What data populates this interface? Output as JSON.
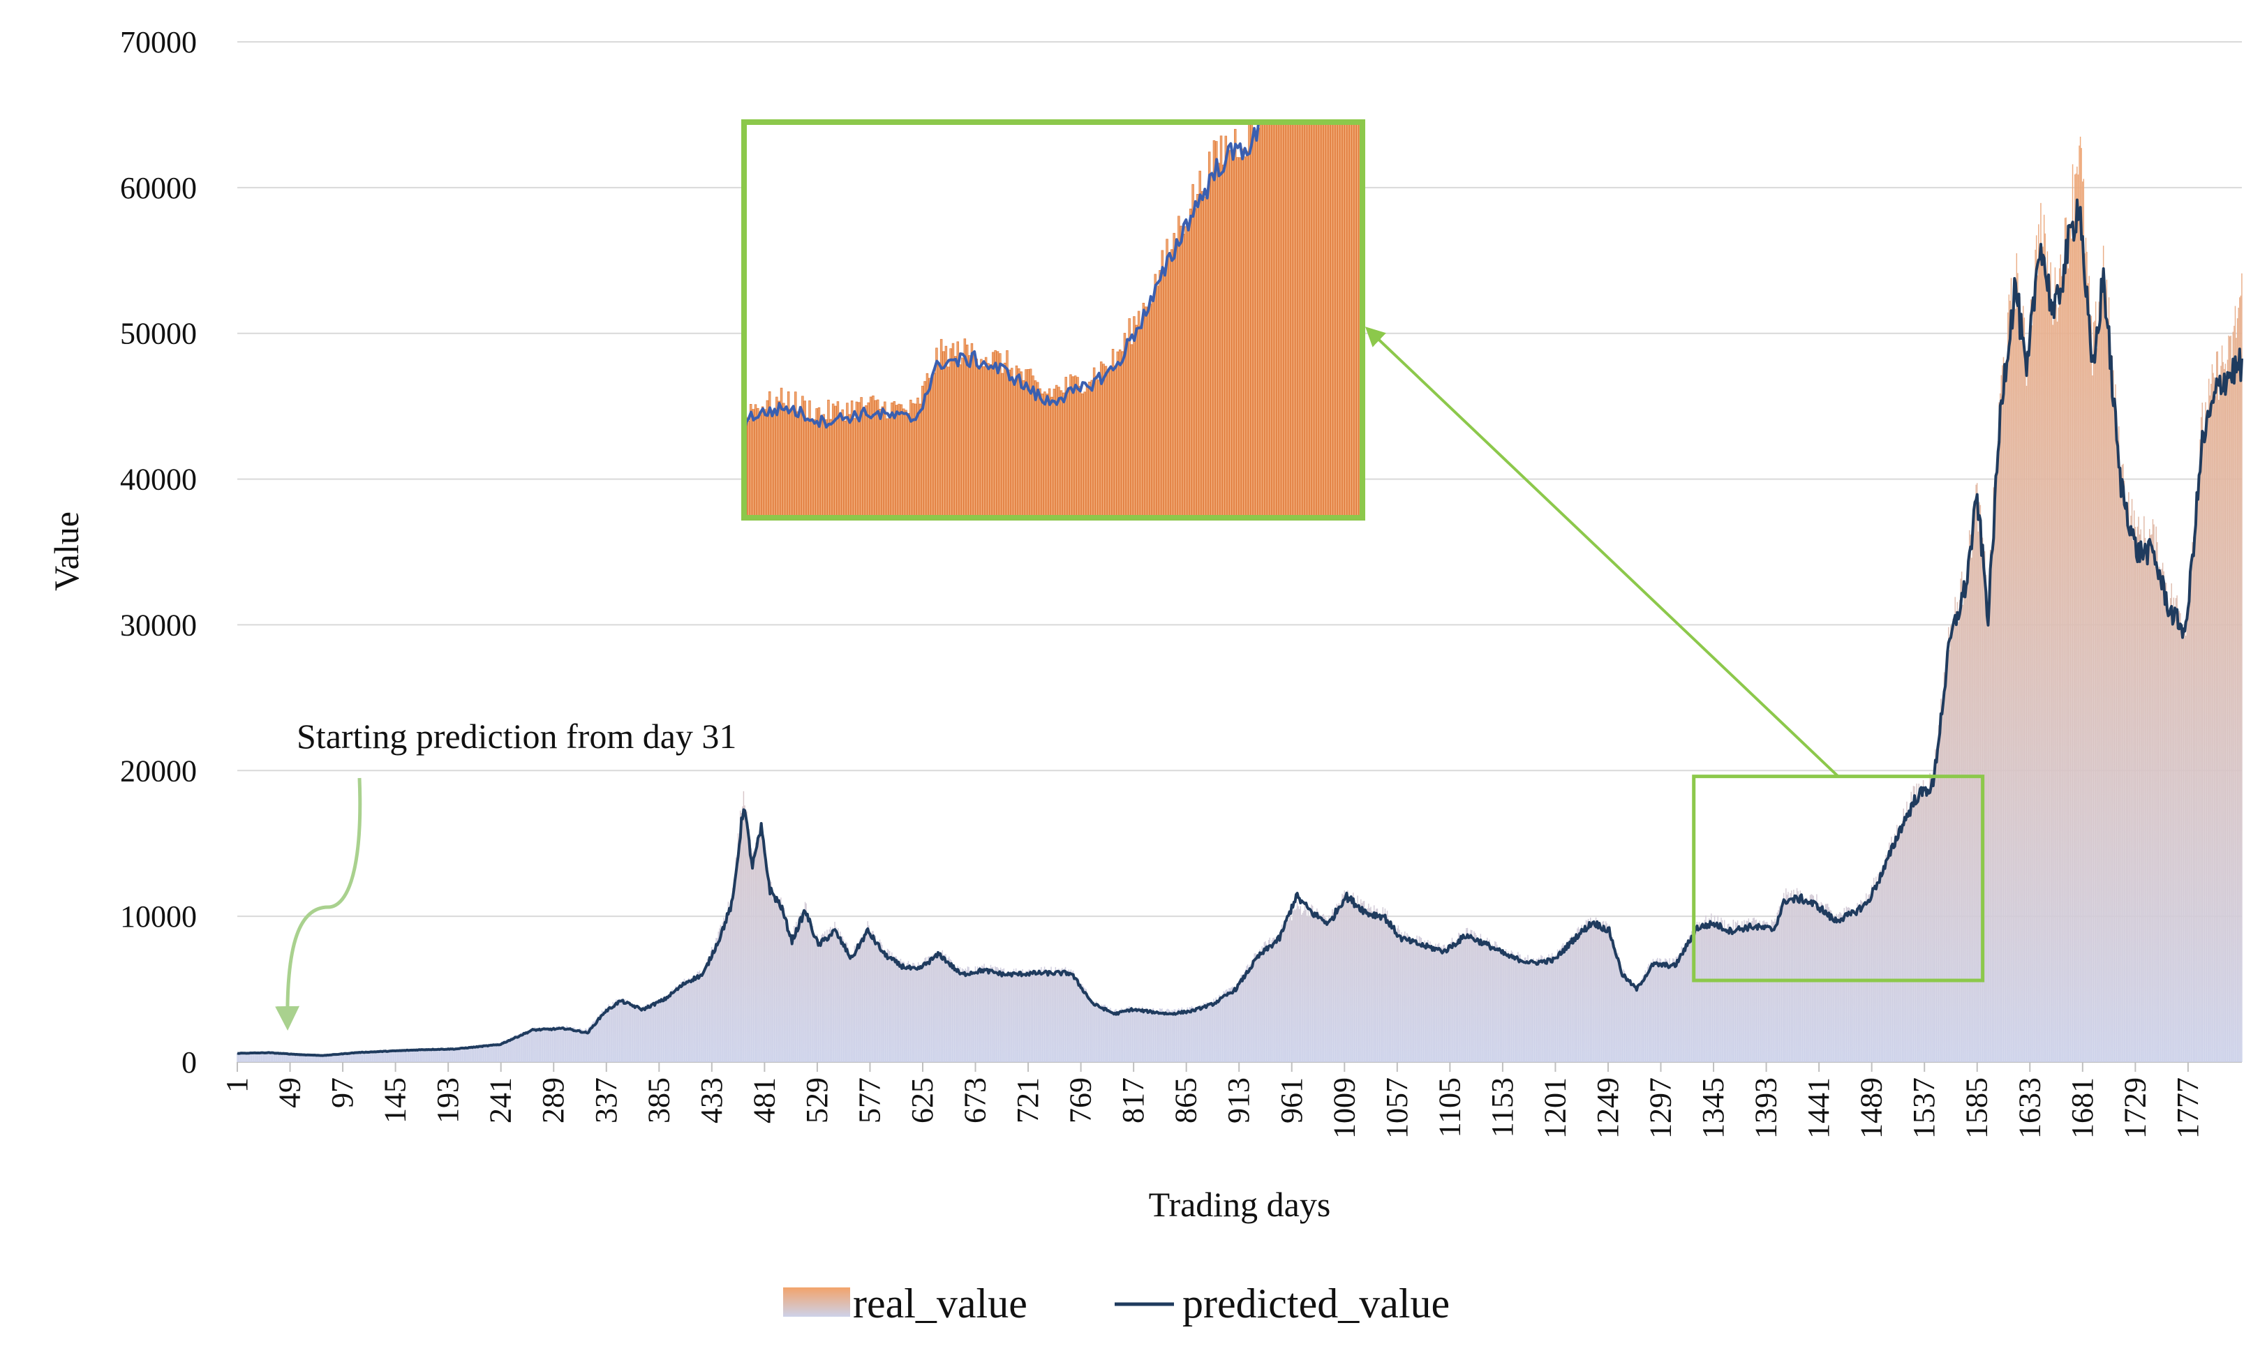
{
  "chart_data": {
    "type": "bar+line",
    "title": "",
    "xlabel": "Trading days",
    "ylabel": "Value",
    "ylim": [
      0,
      70000
    ],
    "xlim": [
      1,
      1826
    ],
    "yticks": [
      0,
      10000,
      20000,
      30000,
      40000,
      50000,
      60000,
      70000
    ],
    "ytick_labels": [
      "0",
      "10000",
      "20000",
      "30000",
      "40000",
      "50000",
      "60000",
      "70000"
    ],
    "xticks": [
      1,
      49,
      97,
      145,
      193,
      241,
      289,
      337,
      385,
      433,
      481,
      529,
      577,
      625,
      673,
      721,
      769,
      817,
      865,
      913,
      961,
      1009,
      1057,
      1105,
      1153,
      1201,
      1249,
      1297,
      1345,
      1393,
      1441,
      1489,
      1537,
      1585,
      1633,
      1681,
      1729,
      1777
    ],
    "xtick_labels": [
      "1",
      "49",
      "97",
      "145",
      "193",
      "241",
      "289",
      "337",
      "385",
      "433",
      "481",
      "529",
      "577",
      "625",
      "673",
      "721",
      "769",
      "817",
      "865",
      "913",
      "961",
      "1009",
      "1057",
      "1105",
      "1153",
      "1201",
      "1249",
      "1297",
      "1345",
      "1393",
      "1441",
      "1489",
      "1537",
      "1585",
      "1633",
      "1681",
      "1729",
      "1777"
    ],
    "grid": "horizontal",
    "legend_position": "bottom-center",
    "colors": {
      "real_value_top": "#f2a36b",
      "real_value_bottom": "#cdd2ea",
      "predicted_value": "#1f3b5e",
      "gridline": "#d9d9d9",
      "annotation": "#8cc84b",
      "annotation_arrow_light": "#a9d18e"
    },
    "series": [
      {
        "name": "real_value",
        "kind": "bar",
        "points": [
          [
            1,
            620
          ],
          [
            30,
            640
          ],
          [
            60,
            600
          ],
          [
            80,
            500
          ],
          [
            110,
            700
          ],
          [
            140,
            800
          ],
          [
            170,
            900
          ],
          [
            200,
            950
          ],
          [
            240,
            1300
          ],
          [
            270,
            2300
          ],
          [
            300,
            2400
          ],
          [
            320,
            2200
          ],
          [
            335,
            3600
          ],
          [
            350,
            4300
          ],
          [
            370,
            3700
          ],
          [
            390,
            4400
          ],
          [
            410,
            5600
          ],
          [
            425,
            6200
          ],
          [
            440,
            8800
          ],
          [
            452,
            11600
          ],
          [
            462,
            18700
          ],
          [
            470,
            13800
          ],
          [
            478,
            16300
          ],
          [
            486,
            12000
          ],
          [
            496,
            11000
          ],
          [
            506,
            8600
          ],
          [
            518,
            10700
          ],
          [
            530,
            8300
          ],
          [
            545,
            9300
          ],
          [
            560,
            7300
          ],
          [
            575,
            9300
          ],
          [
            590,
            7600
          ],
          [
            605,
            6800
          ],
          [
            620,
            6500
          ],
          [
            640,
            7600
          ],
          [
            660,
            6200
          ],
          [
            680,
            6500
          ],
          [
            700,
            6200
          ],
          [
            730,
            6300
          ],
          [
            760,
            6300
          ],
          [
            780,
            4200
          ],
          [
            800,
            3500
          ],
          [
            815,
            3700
          ],
          [
            850,
            3500
          ],
          [
            870,
            3700
          ],
          [
            890,
            4200
          ],
          [
            910,
            5200
          ],
          [
            930,
            7500
          ],
          [
            950,
            8800
          ],
          [
            965,
            10600
          ],
          [
            980,
            10400
          ],
          [
            995,
            9700
          ],
          [
            1010,
            11600
          ],
          [
            1030,
            10500
          ],
          [
            1045,
            10300
          ],
          [
            1060,
            8800
          ],
          [
            1080,
            8200
          ],
          [
            1100,
            7800
          ],
          [
            1120,
            8900
          ],
          [
            1140,
            8200
          ],
          [
            1160,
            7400
          ],
          [
            1180,
            7000
          ],
          [
            1200,
            7200
          ],
          [
            1220,
            8800
          ],
          [
            1235,
            9800
          ],
          [
            1250,
            9200
          ],
          [
            1262,
            6200
          ],
          [
            1275,
            5200
          ],
          [
            1290,
            6900
          ],
          [
            1310,
            6800
          ],
          [
            1330,
            9500
          ],
          [
            1345,
            9800
          ],
          [
            1360,
            9300
          ],
          [
            1380,
            9600
          ],
          [
            1400,
            9400
          ],
          [
            1410,
            11400
          ],
          [
            1425,
            11500
          ],
          [
            1440,
            11000
          ],
          [
            1455,
            10000
          ],
          [
            1470,
            10400
          ],
          [
            1485,
            11200
          ],
          [
            1500,
            13500
          ],
          [
            1515,
            16400
          ],
          [
            1530,
            18600
          ],
          [
            1545,
            19400
          ],
          [
            1560,
            29500
          ],
          [
            1575,
            33400
          ],
          [
            1585,
            38800
          ],
          [
            1595,
            31500
          ],
          [
            1607,
            46500
          ],
          [
            1620,
            54000
          ],
          [
            1630,
            48000
          ],
          [
            1642,
            57500
          ],
          [
            1655,
            52000
          ],
          [
            1668,
            57000
          ],
          [
            1678,
            63500
          ],
          [
            1690,
            48000
          ],
          [
            1700,
            55000
          ],
          [
            1715,
            41000
          ],
          [
            1730,
            36000
          ],
          [
            1745,
            36000
          ],
          [
            1760,
            32000
          ],
          [
            1775,
            30000
          ],
          [
            1790,
            43500
          ],
          [
            1805,
            47500
          ],
          [
            1815,
            48000
          ],
          [
            1826,
            53000
          ]
        ]
      },
      {
        "name": "predicted_value",
        "kind": "line",
        "points": [
          [
            1,
            600
          ],
          [
            30,
            640
          ],
          [
            60,
            500
          ],
          [
            80,
            450
          ],
          [
            110,
            650
          ],
          [
            140,
            750
          ],
          [
            170,
            850
          ],
          [
            200,
            900
          ],
          [
            240,
            1200
          ],
          [
            270,
            2200
          ],
          [
            300,
            2300
          ],
          [
            320,
            2000
          ],
          [
            335,
            3400
          ],
          [
            350,
            4200
          ],
          [
            370,
            3600
          ],
          [
            390,
            4300
          ],
          [
            410,
            5500
          ],
          [
            425,
            6000
          ],
          [
            440,
            8500
          ],
          [
            452,
            11000
          ],
          [
            462,
            17700
          ],
          [
            470,
            13400
          ],
          [
            478,
            16000
          ],
          [
            486,
            11800
          ],
          [
            496,
            10700
          ],
          [
            506,
            8300
          ],
          [
            518,
            10400
          ],
          [
            530,
            8000
          ],
          [
            545,
            9000
          ],
          [
            560,
            7100
          ],
          [
            575,
            9000
          ],
          [
            590,
            7400
          ],
          [
            605,
            6600
          ],
          [
            620,
            6300
          ],
          [
            640,
            7400
          ],
          [
            660,
            6000
          ],
          [
            680,
            6300
          ],
          [
            700,
            6000
          ],
          [
            730,
            6100
          ],
          [
            760,
            6100
          ],
          [
            780,
            4000
          ],
          [
            800,
            3300
          ],
          [
            815,
            3600
          ],
          [
            850,
            3300
          ],
          [
            870,
            3500
          ],
          [
            890,
            4000
          ],
          [
            910,
            5000
          ],
          [
            930,
            7200
          ],
          [
            950,
            8500
          ],
          [
            965,
            11400
          ],
          [
            980,
            10200
          ],
          [
            995,
            9500
          ],
          [
            1010,
            11400
          ],
          [
            1030,
            10200
          ],
          [
            1045,
            10000
          ],
          [
            1060,
            8500
          ],
          [
            1080,
            8000
          ],
          [
            1100,
            7600
          ],
          [
            1120,
            8700
          ],
          [
            1140,
            8000
          ],
          [
            1160,
            7200
          ],
          [
            1180,
            6800
          ],
          [
            1200,
            7000
          ],
          [
            1220,
            8600
          ],
          [
            1235,
            9600
          ],
          [
            1250,
            9000
          ],
          [
            1262,
            6000
          ],
          [
            1275,
            5000
          ],
          [
            1290,
            6700
          ],
          [
            1310,
            6600
          ],
          [
            1330,
            9200
          ],
          [
            1345,
            9500
          ],
          [
            1360,
            9000
          ],
          [
            1380,
            9300
          ],
          [
            1400,
            9100
          ],
          [
            1410,
            11100
          ],
          [
            1425,
            11200
          ],
          [
            1440,
            10700
          ],
          [
            1455,
            9700
          ],
          [
            1470,
            10100
          ],
          [
            1485,
            10900
          ],
          [
            1500,
            13200
          ],
          [
            1515,
            16000
          ],
          [
            1530,
            18200
          ],
          [
            1545,
            19000
          ],
          [
            1560,
            28800
          ],
          [
            1575,
            32800
          ],
          [
            1585,
            38800
          ],
          [
            1595,
            30500
          ],
          [
            1607,
            45500
          ],
          [
            1620,
            53400
          ],
          [
            1630,
            46800
          ],
          [
            1642,
            56500
          ],
          [
            1655,
            51000
          ],
          [
            1668,
            56000
          ],
          [
            1678,
            59200
          ],
          [
            1690,
            47000
          ],
          [
            1700,
            54000
          ],
          [
            1715,
            40000
          ],
          [
            1730,
            35000
          ],
          [
            1745,
            35000
          ],
          [
            1760,
            31000
          ],
          [
            1775,
            29500
          ],
          [
            1790,
            42500
          ],
          [
            1805,
            46500
          ],
          [
            1815,
            47200
          ],
          [
            1826,
            47900
          ]
        ]
      }
    ],
    "annotations": [
      {
        "text": "Starting prediction from day 31",
        "points_to_day": 31
      }
    ],
    "zoom": {
      "x_range": [
        1327,
        1590
      ],
      "y_range": [
        5600,
        19600
      ]
    },
    "legend": [
      {
        "label": "real_value",
        "marker": "gradient-fill"
      },
      {
        "label": "predicted_value",
        "marker": "line"
      }
    ]
  }
}
